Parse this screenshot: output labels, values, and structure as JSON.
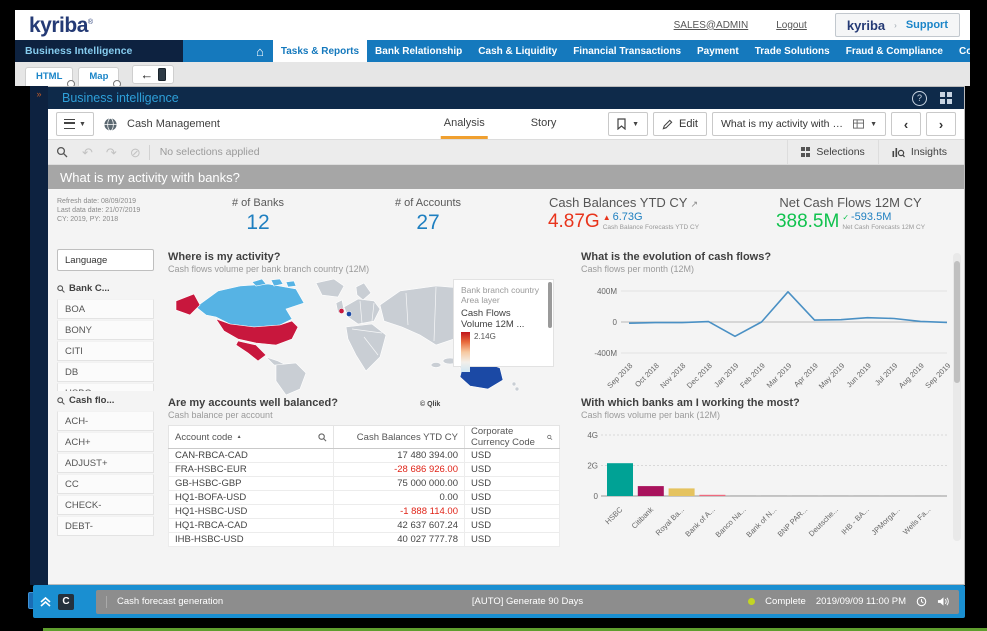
{
  "topbar": {
    "logo": "kyriba",
    "user": "SALES@ADMIN",
    "logout": "Logout",
    "support_brand": "kyriba",
    "support": "Support"
  },
  "nav": {
    "bi_label": "Business Intelligence",
    "active": "Tasks & Reports",
    "items": [
      "Tasks & Reports",
      "Bank Relationship",
      "Cash & Liquidity",
      "Financial Transactions",
      "Payment",
      "Trade Solutions",
      "Fraud & Compliance",
      "Core Data"
    ]
  },
  "browser_tabs": {
    "tab1": "HTML",
    "tab2": "Map"
  },
  "bi_panel": {
    "title": "Business intelligence"
  },
  "toolbar": {
    "app_name": "Cash Management",
    "tab_analysis": "Analysis",
    "tab_story": "Story",
    "edit_label": "Edit",
    "sheet_selector": "What is my activity with ban...",
    "selections_label": "Selections",
    "insights_label": "Insights",
    "accent_color": "#f0a030"
  },
  "selection_bar": {
    "status": "No selections applied"
  },
  "sheet_banner": {
    "title": "What is my activity with banks?"
  },
  "refresh_info": {
    "line1": "Refresh date: 08/09/2019",
    "line2": "Last data date: 21/07/2019",
    "line3": "CY: 2019, PY: 2018"
  },
  "kpis": {
    "banks": {
      "label": "# of Banks",
      "value": "12",
      "color": "#1e7fc0"
    },
    "accounts": {
      "label": "# of Accounts",
      "value": "27",
      "color": "#1e7fc0"
    },
    "cash_balances": {
      "label": "Cash Balances YTD CY",
      "value": "4.87G",
      "value_color": "#e8341c",
      "delta": "6.73G",
      "delta_color": "#1e7fc0",
      "delta_label": "Cash Balance Forecasts YTD CY"
    },
    "net_cash_flows": {
      "label": "Net Cash Flows 12M CY",
      "value": "388.5M",
      "value_color": "#10c24e",
      "delta": "-593.5M",
      "delta_color": "#1e7fc0",
      "delta_label": "Net Cash Forecasts 12M CY"
    }
  },
  "filters": {
    "language_label": "Language",
    "bank_filter": {
      "label": "Bank C...",
      "items": [
        "BOA",
        "BONY",
        "CITI",
        "DB",
        "HSBC"
      ]
    },
    "cashflow_filter": {
      "label": "Cash flo...",
      "items": [
        "ACH-",
        "ACH+",
        "ADJUST+",
        "CC",
        "CHECK-",
        "DEBT-"
      ]
    }
  },
  "status_bar": {
    "task": "Cash forecast generation",
    "job": "[AUTO] Generate 90 Days",
    "state": "Complete",
    "state_color": "#c3d523",
    "timestamp": "2019/09/09 11:00 PM"
  },
  "chart_data": [
    {
      "type": "map",
      "title": "Where is my activity?",
      "subtitle": "Cash flows volume per bank branch country (12M)",
      "legend": {
        "dimension": "Bank branch country",
        "layer": "Area layer",
        "measure_line1": "Cash Flows",
        "measure_line2": "Volume 12M ...",
        "max_value": "2.14G"
      },
      "attribution": "© Qlik",
      "base_color": "#c9ced4",
      "country_colors": {
        "canada": "#56b3e4",
        "usa": "#c8173d",
        "alaska": "#c8173d",
        "mexico": "#c8173d",
        "uk_dot": "#c8173d",
        "netherlands": "#1b49a5",
        "japan": "#56b3e4",
        "australia": "#1b49a5"
      },
      "gradient": [
        "#c0151c",
        "#e86a3c",
        "#f7c9a0",
        "#f3efe9",
        "#cfe6f3"
      ]
    },
    {
      "type": "line",
      "title": "What is the evolution of cash flows?",
      "subtitle": "Cash flows per month (12M)",
      "x": [
        "Sep 2018",
        "Oct 2018",
        "Nov 2018",
        "Dec 2018",
        "Jan 2019",
        "Feb 2019",
        "Mar 2019",
        "Apr 2019",
        "May 2019",
        "Jun 2019",
        "Jul 2019",
        "Aug 2019",
        "Sep 2019"
      ],
      "values_millions": [
        -15,
        -8,
        -8,
        5,
        -185,
        0,
        390,
        25,
        30,
        55,
        45,
        8,
        -5
      ],
      "ylim_millions": [
        -400,
        400
      ],
      "yticks": [
        {
          "label": "400M",
          "value": 400
        },
        {
          "label": "0",
          "value": 0
        },
        {
          "label": "-400M",
          "value": -400
        }
      ],
      "line_color": "#4a90c4",
      "grid": true,
      "legend_position": "none"
    },
    {
      "type": "table",
      "title": "Are my accounts well balanced?",
      "subtitle": "Cash balance per account",
      "columns": [
        "Account code",
        "Cash Balances YTD CY",
        "Corporate Currency Code"
      ],
      "rows": [
        [
          "CAN-RBCA-CAD",
          "17 480 394.00",
          "USD"
        ],
        [
          "FRA-HSBC-EUR",
          "-28 686 926.00",
          "USD"
        ],
        [
          "GB-HSBC-GBP",
          "75 000 000.00",
          "USD"
        ],
        [
          "HQ1-BOFA-USD",
          "0.00",
          "USD"
        ],
        [
          "HQ1-HSBC-USD",
          "-1 888 114.00",
          "USD"
        ],
        [
          "HQ1-RBCA-CAD",
          "42 637 607.24",
          "USD"
        ],
        [
          "IHB-HSBC-USD",
          "40 027 777.78",
          "USD"
        ]
      ],
      "negative_color": "#e02418"
    },
    {
      "type": "bar",
      "title": "With which banks am I working the most?",
      "subtitle": "Cash flows volume per bank (12M)",
      "categories": [
        "HSBC",
        "Citibank",
        "Royal Ba...",
        "Bank of A...",
        "Banco Na...",
        "Bank of N...",
        "BNP PAR...",
        "Deutsche...",
        "IHB - BA...",
        "JPMorga...",
        "Wells Fa..."
      ],
      "values_billions": [
        2.15,
        0.65,
        0.5,
        0.08,
        0.02,
        0.02,
        0.02,
        0.02,
        0.02,
        0.01,
        0.01
      ],
      "ylim_billions": [
        0,
        4
      ],
      "yticks": [
        {
          "label": "4G",
          "value": 4
        },
        {
          "label": "2G",
          "value": 2
        },
        {
          "label": "0",
          "value": 0
        }
      ],
      "bar_colors": [
        "#00a295",
        "#a8125c",
        "#e5c35f",
        "#ef6a7e",
        "#8a8a8a",
        "#8a8a8a",
        "#8a8a8a",
        "#8a8a8a",
        "#8a8a8a",
        "#8a8a8a",
        "#8a8a8a"
      ],
      "grid": true,
      "legend_position": "none"
    }
  ]
}
